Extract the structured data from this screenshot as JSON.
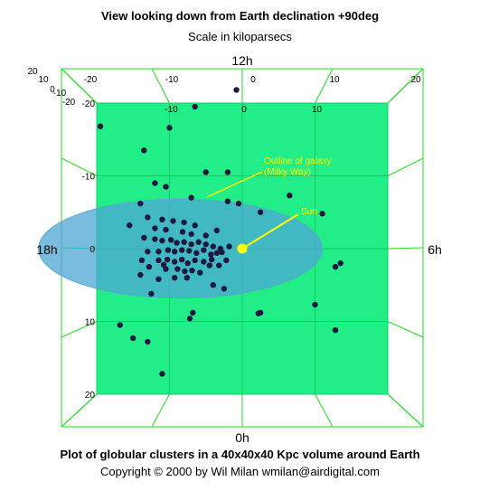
{
  "header": {
    "title": "View looking down from Earth declination +90deg",
    "subtitle": "Scale in kiloparsecs"
  },
  "footer": {
    "caption": "Plot of globular clusters in a 40x40x40 Kpc volume around Earth",
    "copyright": "Copyright © 2000 by Wil Milan  wmilan@airdigital.com"
  },
  "directions": {
    "top": "12h",
    "left": "18h",
    "right": "6h",
    "bottom": "0h"
  },
  "annotations": {
    "galaxy": "Outline of galaxy\n(Milky Way)",
    "sun": "Sun"
  },
  "colors": {
    "plane": "#22ee88",
    "frame": "#22dd22",
    "cluster": "#1a1a40",
    "sun": "#ffff00",
    "galaxy": "#4da6d6",
    "annotation": "#ffff00"
  },
  "chart_data": {
    "type": "scatter",
    "title": "View looking down from Earth declination +90deg",
    "subtitle": "Scale in kiloparsecs",
    "xlim": [
      -20,
      20
    ],
    "ylim": [
      -20,
      20
    ],
    "x_ticks": [
      -20,
      -10,
      0,
      10,
      20
    ],
    "y_ticks": [
      -20,
      -10,
      0,
      10,
      20
    ],
    "y_axis_inverted": true,
    "top_axis_ticks": [
      -20,
      -10,
      0,
      10,
      20
    ],
    "left_axis_ticks": [
      20,
      10,
      0,
      -10,
      -20
    ],
    "grid": true,
    "sun": {
      "x": 0,
      "y": 0
    },
    "galaxy_outline": {
      "cx": -8.5,
      "cy": 0,
      "rx": 19.5,
      "ry": 6.8
    },
    "series": [
      {
        "values_xy": [
          [
            -19.5,
            -16.8
          ],
          [
            -10,
            -16.6
          ],
          [
            -6.5,
            -19.5
          ],
          [
            -13.5,
            -13.5
          ],
          [
            -5,
            -10.5
          ],
          [
            -2,
            -10.5
          ],
          [
            -12,
            -9
          ],
          [
            -10.5,
            -8.5
          ],
          [
            -7,
            -7
          ],
          [
            -2,
            -6.5
          ],
          [
            -0.5,
            -6.2
          ],
          [
            2.5,
            -5
          ],
          [
            6.5,
            -7.3
          ],
          [
            -14,
            -6.2
          ],
          [
            -15.5,
            -3.2
          ],
          [
            -13,
            -4.3
          ],
          [
            -11,
            -4
          ],
          [
            -9.5,
            -3.8
          ],
          [
            -8,
            -3.6
          ],
          [
            -6.5,
            -3.2
          ],
          [
            -3.5,
            -2.5
          ],
          [
            -12,
            -2.8
          ],
          [
            -10.5,
            -2.6
          ],
          [
            -8.2,
            -2.3
          ],
          [
            -7,
            -2
          ],
          [
            -5,
            -1.8
          ],
          [
            -13.5,
            -1.5
          ],
          [
            -12,
            -1.3
          ],
          [
            -11,
            -1.1
          ],
          [
            -9.8,
            -1.2
          ],
          [
            -9,
            -0.8
          ],
          [
            -8,
            -0.9
          ],
          [
            -7,
            -0.6
          ],
          [
            -6,
            -0.9
          ],
          [
            -5,
            -0.6
          ],
          [
            -4,
            -0.3
          ],
          [
            -3,
            0
          ],
          [
            -13,
            0.4
          ],
          [
            -11.5,
            0.4
          ],
          [
            -10.2,
            0.2
          ],
          [
            -9.3,
            0.4
          ],
          [
            -8.3,
            0.2
          ],
          [
            -7.3,
            0.3
          ],
          [
            -6.3,
            0.6
          ],
          [
            -5.3,
            0.2
          ],
          [
            -4.3,
            0.8
          ],
          [
            -3.5,
            0.6
          ],
          [
            -11.5,
            1.6
          ],
          [
            -10.3,
            1.5
          ],
          [
            -9.3,
            1.8
          ],
          [
            -8.3,
            1.5
          ],
          [
            -7.5,
            2
          ],
          [
            -6.5,
            1.6
          ],
          [
            -5.3,
            1.8
          ],
          [
            -4.5,
            2.3
          ],
          [
            -13.8,
            1.6
          ],
          [
            -12.8,
            2.5
          ],
          [
            -10.5,
            2.8
          ],
          [
            -8.9,
            2.8
          ],
          [
            -7.9,
            3.1
          ],
          [
            -6.9,
            3
          ],
          [
            -5.8,
            3.3
          ],
          [
            -4.2,
            1.5
          ],
          [
            -2.8,
            0.5
          ],
          [
            -1.8,
            -0.3
          ],
          [
            -2.2,
            1.6
          ],
          [
            -3.2,
            2.3
          ],
          [
            -14,
            3.6
          ],
          [
            -11.5,
            4.2
          ],
          [
            -9.3,
            4
          ],
          [
            -10.8,
            2.2
          ],
          [
            -7.6,
            4
          ],
          [
            -12.5,
            6.2
          ],
          [
            -7.2,
            9.6
          ],
          [
            -6.8,
            8.8
          ],
          [
            -4,
            5
          ],
          [
            -2.5,
            5.5
          ],
          [
            2.5,
            8.8
          ],
          [
            2.2,
            8.9
          ],
          [
            10,
            7.7
          ],
          [
            11,
            -4.8
          ],
          [
            13.5,
            2
          ],
          [
            12.8,
            2.5
          ],
          [
            12.8,
            11.2
          ],
          [
            -16.8,
            10.5
          ],
          [
            -15,
            12.3
          ],
          [
            -13,
            12.8
          ],
          [
            -11,
            17.2
          ],
          [
            -0.8,
            -21.8
          ]
        ]
      }
    ]
  }
}
